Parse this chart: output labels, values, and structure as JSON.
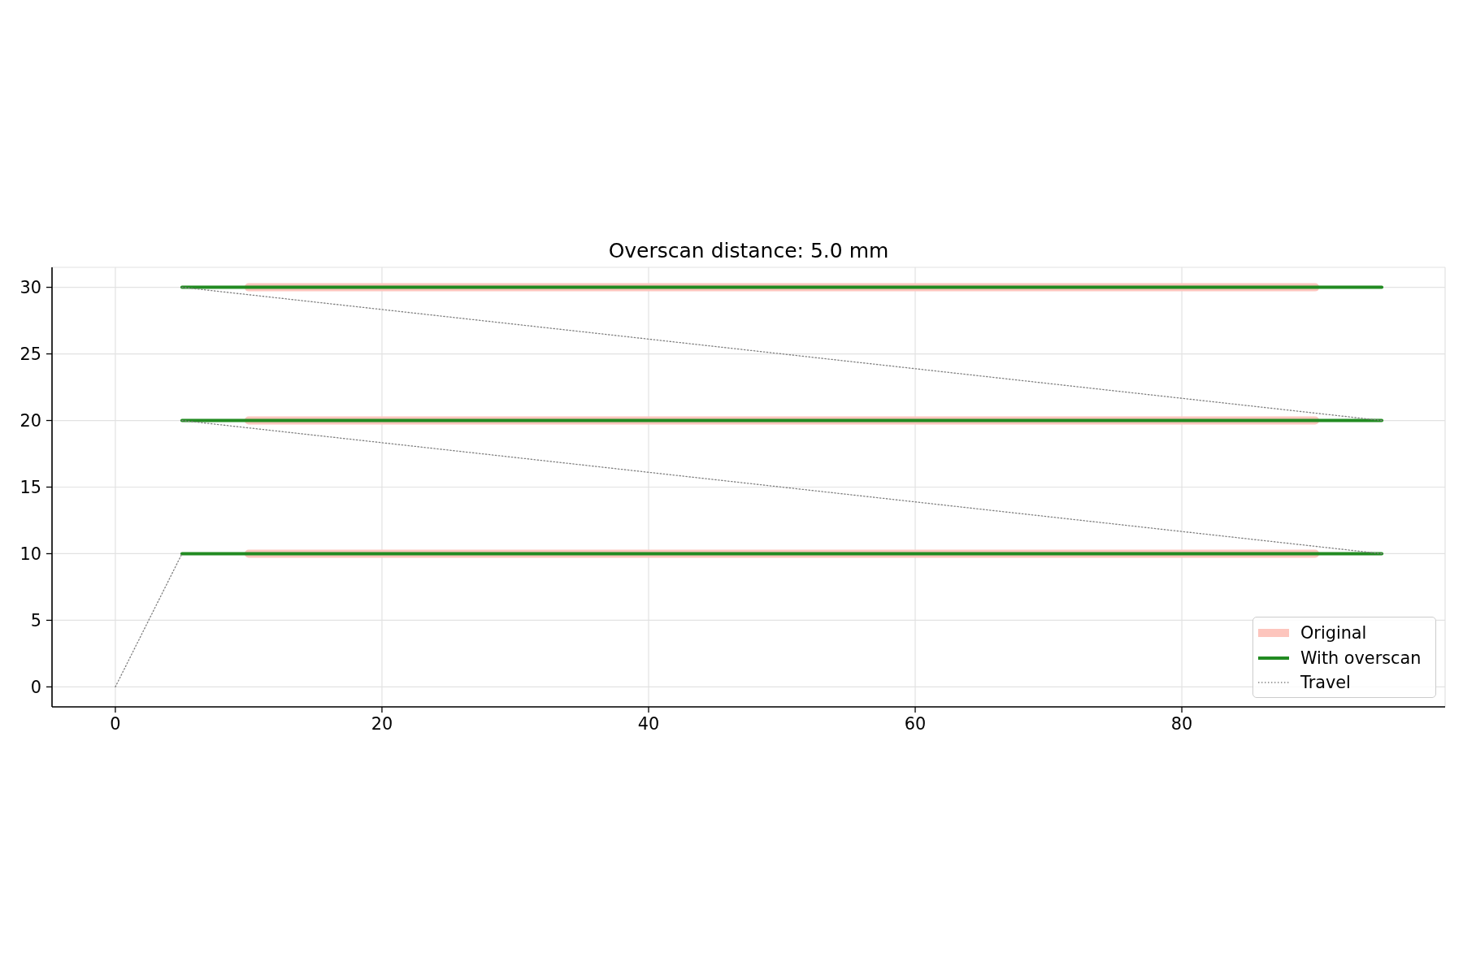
{
  "chart_data": {
    "type": "line",
    "title": "Overscan distance: 5.0 mm",
    "xlim": [
      -4.75,
      99.75
    ],
    "ylim": [
      -1.5,
      31.5
    ],
    "xticks": [
      0,
      20,
      40,
      60,
      80
    ],
    "yticks": [
      0,
      5,
      10,
      15,
      20,
      25,
      30
    ],
    "grid": true,
    "legend": "bottom right",
    "marker": "none",
    "series": [
      {
        "name": "Original",
        "color": "#fdc5bd",
        "x": [
          10,
          90
        ],
        "values": [
          10,
          10
        ]
      },
      {
        "color": "#fdc5bd",
        "x": [
          10,
          90
        ],
        "values": [
          20,
          20
        ]
      },
      {
        "color": "#fdc5bd",
        "x": [
          10,
          90
        ],
        "values": [
          30,
          30
        ]
      },
      {
        "name": "With overscan",
        "color": "#228b22",
        "x": [
          5,
          95
        ],
        "values": [
          10,
          10
        ]
      },
      {
        "color": "#228b22",
        "x": [
          5,
          95
        ],
        "values": [
          20,
          20
        ]
      },
      {
        "color": "#228b22",
        "x": [
          5,
          95
        ],
        "values": [
          30,
          30
        ]
      },
      {
        "name": "Travel",
        "color": "#808080",
        "line_style": "dotted",
        "x": [
          0,
          5
        ],
        "values": [
          0,
          10
        ]
      },
      {
        "color": "#808080",
        "line_style": "dotted",
        "x": [
          95,
          5
        ],
        "values": [
          10,
          20
        ]
      },
      {
        "color": "#808080",
        "line_style": "dotted",
        "x": [
          95,
          5
        ],
        "values": [
          20,
          30
        ]
      }
    ]
  }
}
